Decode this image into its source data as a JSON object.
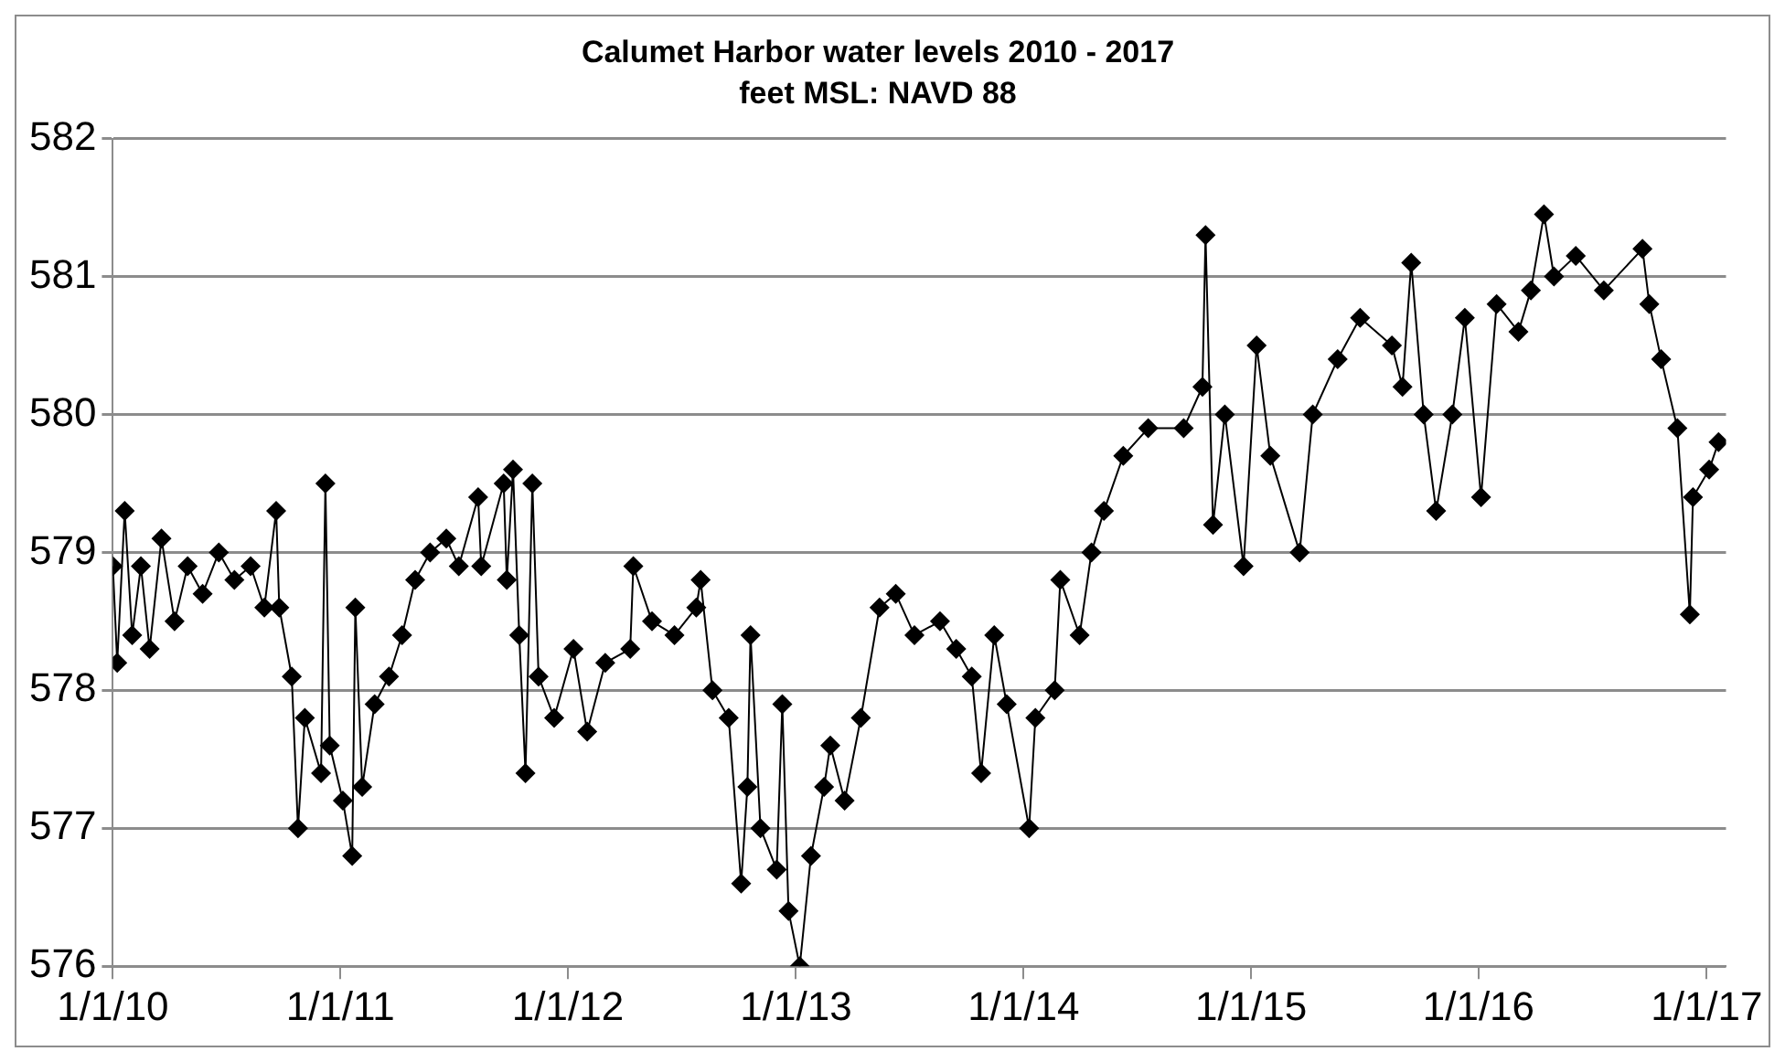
{
  "chart_data": {
    "type": "line",
    "title": "Calumet Harbor water levels 2010 - 2017",
    "subtitle": "feet MSL: NAVD 88",
    "marker": "diamond",
    "line_style": "solid",
    "grid": "y",
    "x": [
      "2010-01-01",
      "2010-01-08",
      "2010-01-20",
      "2010-02-01",
      "2010-02-15",
      "2010-03-01",
      "2010-03-20",
      "2010-04-10",
      "2010-05-01",
      "2010-05-25",
      "2010-06-20",
      "2010-07-15",
      "2010-08-10",
      "2010-09-01",
      "2010-09-20",
      "2010-09-25",
      "2010-10-15",
      "2010-10-25",
      "2010-11-05",
      "2010-12-01",
      "2010-12-08",
      "2010-12-15",
      "2011-01-05",
      "2011-01-20",
      "2011-01-25",
      "2011-02-05",
      "2011-02-25",
      "2011-03-20",
      "2011-04-10",
      "2011-05-01",
      "2011-05-25",
      "2011-06-20",
      "2011-07-10",
      "2011-08-10",
      "2011-08-15",
      "2011-09-20",
      "2011-09-25",
      "2011-10-05",
      "2011-10-15",
      "2011-10-25",
      "2011-11-05",
      "2011-11-15",
      "2011-12-10",
      "2012-01-10",
      "2012-02-01",
      "2012-03-01",
      "2012-04-10",
      "2012-04-15",
      "2012-05-15",
      "2012-06-20",
      "2012-07-25",
      "2012-08-01",
      "2012-08-20",
      "2012-09-15",
      "2012-10-05",
      "2012-10-15",
      "2012-10-20",
      "2012-11-05",
      "2012-12-01",
      "2012-12-10",
      "2012-12-20",
      "2013-01-07",
      "2013-01-25",
      "2013-02-15",
      "2013-02-25",
      "2013-03-20",
      "2013-04-15",
      "2013-05-15",
      "2013-06-10",
      "2013-07-10",
      "2013-08-20",
      "2013-09-15",
      "2013-10-10",
      "2013-10-25",
      "2013-11-15",
      "2013-12-05",
      "2014-01-10",
      "2014-01-20",
      "2014-02-20",
      "2014-03-01",
      "2014-04-01",
      "2014-04-20",
      "2014-05-10",
      "2014-06-10",
      "2014-07-20",
      "2014-09-15",
      "2014-10-15",
      "2014-10-20",
      "2014-11-01",
      "2014-11-20",
      "2014-12-20",
      "2015-01-10",
      "2015-02-01",
      "2015-03-20",
      "2015-04-10",
      "2015-05-20",
      "2015-06-25",
      "2015-08-15",
      "2015-09-01",
      "2015-09-15",
      "2015-10-05",
      "2015-10-25",
      "2015-11-20",
      "2015-12-10",
      "2016-01-05",
      "2016-01-30",
      "2016-03-05",
      "2016-03-25",
      "2016-04-15",
      "2016-05-01",
      "2016-06-05",
      "2016-07-20",
      "2016-09-20",
      "2016-10-01",
      "2016-10-20",
      "2016-11-15",
      "2016-12-05",
      "2016-12-10",
      "2017-01-05",
      "2017-01-20"
    ],
    "series": [
      {
        "color": "#000000",
        "values": [
          578.9,
          578.2,
          579.3,
          578.4,
          578.9,
          578.3,
          579.1,
          578.5,
          578.9,
          578.7,
          579.0,
          578.8,
          578.9,
          578.6,
          579.3,
          578.6,
          578.1,
          577.0,
          577.8,
          577.4,
          579.5,
          577.6,
          577.2,
          576.8,
          578.6,
          577.3,
          577.9,
          578.1,
          578.4,
          578.8,
          579.0,
          579.1,
          578.9,
          579.4,
          578.9,
          579.5,
          578.8,
          579.6,
          578.4,
          577.4,
          579.5,
          578.1,
          577.8,
          578.3,
          577.7,
          578.2,
          578.3,
          578.9,
          578.5,
          578.4,
          578.6,
          578.8,
          578.0,
          577.8,
          576.6,
          577.3,
          578.4,
          577.0,
          576.7,
          577.9,
          576.4,
          576.0,
          576.8,
          577.3,
          577.6,
          577.2,
          577.8,
          578.6,
          578.7,
          578.4,
          578.5,
          578.3,
          578.1,
          577.4,
          578.4,
          577.9,
          577.0,
          577.8,
          578.0,
          578.8,
          578.4,
          579.0,
          579.3,
          579.7,
          579.9,
          579.9,
          580.2,
          581.3,
          579.2,
          580.0,
          578.9,
          580.5,
          579.7,
          579.0,
          580.0,
          580.4,
          580.7,
          580.5,
          580.2,
          581.1,
          580.0,
          579.3,
          580.0,
          580.7,
          579.4,
          580.8,
          580.6,
          580.9,
          581.45,
          581.0,
          581.15,
          580.9,
          581.2,
          580.8,
          580.4,
          579.9,
          578.55,
          579.4,
          579.6,
          579.8
        ]
      }
    ],
    "xlim": [
      "2010-01-01",
      "2017-02-01"
    ],
    "xticks": [
      {
        "value": "2010-01-01",
        "label": "1/1/10"
      },
      {
        "value": "2011-01-01",
        "label": "1/1/11"
      },
      {
        "value": "2012-01-01",
        "label": "1/1/12"
      },
      {
        "value": "2013-01-01",
        "label": "1/1/13"
      },
      {
        "value": "2014-01-01",
        "label": "1/1/14"
      },
      {
        "value": "2015-01-01",
        "label": "1/1/15"
      },
      {
        "value": "2016-01-01",
        "label": "1/1/16"
      },
      {
        "value": "2017-01-01",
        "label": "1/1/17"
      }
    ],
    "ylim": [
      576,
      582
    ],
    "yticks": [
      576,
      577,
      578,
      579,
      580,
      581,
      582
    ]
  }
}
